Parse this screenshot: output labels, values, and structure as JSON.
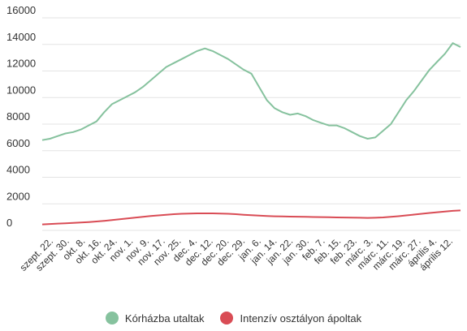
{
  "chart_data": {
    "type": "line",
    "ylim": [
      0,
      16000
    ],
    "yticks": [
      0,
      2000,
      4000,
      6000,
      8000,
      10000,
      12000,
      14000,
      16000
    ],
    "ytick_labels": [
      "0",
      "2000",
      "4000",
      "6000",
      "8000",
      "10000",
      "12000",
      "14000",
      "16000"
    ],
    "x_tick_labels": [
      "szept. 22.",
      "szept. 30.",
      "okt. 8.",
      "okt. 16.",
      "okt. 24.",
      "nov. 1.",
      "nov. 9.",
      "nov. 17.",
      "nov. 25.",
      "dec. 4.",
      "dec. 12.",
      "dec. 20.",
      "dec. 29.",
      "jan. 6.",
      "jan. 14.",
      "jan. 22.",
      "jan. 30.",
      "feb. 7.",
      "feb. 15.",
      "feb. 23.",
      "márc. 3.",
      "márc. 11.",
      "márc. 19.",
      "márc. 27.",
      "április 4.",
      "április 12."
    ],
    "grid": true,
    "legend_position": "bottom",
    "series": [
      {
        "name": "Kórházba utaltak",
        "color": "#86c29e",
        "values": [
          6800,
          6900,
          7100,
          7300,
          7400,
          7600,
          7900,
          8200,
          8900,
          9500,
          9800,
          10100,
          10400,
          10800,
          11300,
          11800,
          12300,
          12600,
          12900,
          13200,
          13500,
          13700,
          13500,
          13200,
          12900,
          12500,
          12100,
          11800,
          10800,
          9800,
          9200,
          8900,
          8700,
          8800,
          8600,
          8300,
          8100,
          7900,
          7900,
          7700,
          7400,
          7100,
          6900,
          7000,
          7500,
          8000,
          8900,
          9800,
          10500,
          11300,
          12100,
          12700,
          13300,
          14100,
          13800
        ]
      },
      {
        "name": "Intenzív osztályon ápoltak",
        "color": "#d94c55",
        "values": [
          450,
          480,
          510,
          540,
          570,
          600,
          630,
          670,
          720,
          780,
          840,
          900,
          960,
          1020,
          1080,
          1130,
          1180,
          1220,
          1250,
          1270,
          1280,
          1280,
          1280,
          1270,
          1250,
          1220,
          1180,
          1140,
          1110,
          1080,
          1060,
          1050,
          1040,
          1030,
          1020,
          1010,
          1000,
          990,
          980,
          970,
          960,
          950,
          940,
          950,
          980,
          1020,
          1070,
          1130,
          1190,
          1250,
          1310,
          1370,
          1420,
          1470,
          1500
        ]
      }
    ]
  }
}
